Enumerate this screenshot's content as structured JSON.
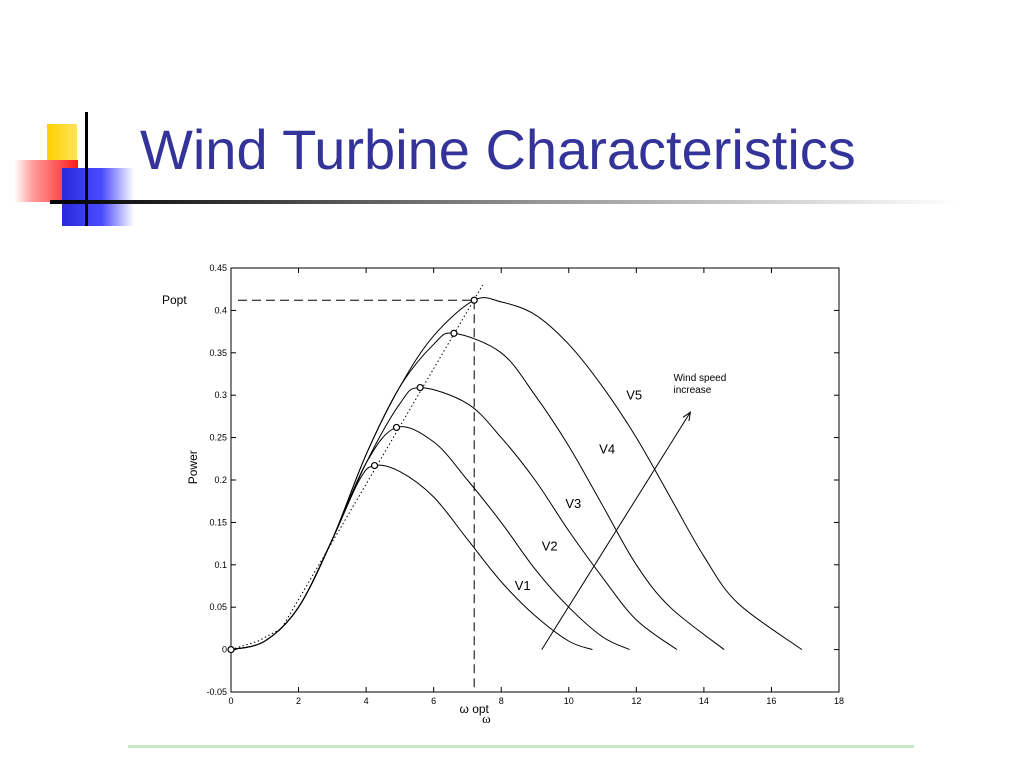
{
  "slide": {
    "title": "Wind Turbine Characteristics",
    "colors": {
      "title": "#333399",
      "yellow": "#ffd000",
      "red": "#ff1a1a",
      "blue": "#3333dd"
    }
  },
  "chart_data": {
    "type": "line",
    "title": "",
    "xlabel": "ω",
    "ylabel": "Power",
    "xlim": [
      0,
      18
    ],
    "ylim": [
      -0.05,
      0.45
    ],
    "x_ticks": [
      0,
      2,
      4,
      6,
      8,
      10,
      12,
      14,
      16,
      18
    ],
    "y_ticks": [
      -0.05,
      0,
      0.05,
      0.1,
      0.15,
      0.2,
      0.25,
      0.3,
      0.35,
      0.4,
      0.45
    ],
    "grid": false,
    "line_color": "#000000",
    "series": [
      {
        "name": "V1",
        "x": [
          0,
          1,
          2,
          3,
          3.8,
          4.25,
          5,
          6,
          7,
          8,
          9,
          10,
          10.7
        ],
        "y": [
          0,
          0.01,
          0.05,
          0.13,
          0.2,
          0.217,
          0.21,
          0.18,
          0.13,
          0.08,
          0.04,
          0.01,
          0
        ]
      },
      {
        "name": "V2",
        "x": [
          0,
          1,
          2,
          3,
          4,
          4.9,
          6,
          7,
          8,
          9,
          10,
          11,
          11.8
        ],
        "y": [
          0,
          0.01,
          0.05,
          0.13,
          0.22,
          0.262,
          0.245,
          0.2,
          0.15,
          0.095,
          0.05,
          0.015,
          0
        ]
      },
      {
        "name": "V3",
        "x": [
          0,
          1,
          2,
          3,
          4,
          5,
          5.6,
          7,
          8,
          9,
          10,
          11,
          12,
          13.2
        ],
        "y": [
          0,
          0.01,
          0.05,
          0.13,
          0.22,
          0.29,
          0.309,
          0.29,
          0.25,
          0.2,
          0.14,
          0.085,
          0.035,
          0
        ]
      },
      {
        "name": "V4",
        "x": [
          0,
          1,
          2,
          3,
          4,
          5,
          6,
          6.6,
          8,
          9,
          10,
          11,
          12,
          13,
          14.6
        ],
        "y": [
          0,
          0.01,
          0.05,
          0.13,
          0.23,
          0.31,
          0.36,
          0.373,
          0.35,
          0.3,
          0.24,
          0.17,
          0.1,
          0.05,
          0
        ]
      },
      {
        "name": "V5",
        "x": [
          0,
          1,
          2,
          3,
          4,
          5,
          6,
          7.2,
          8,
          9,
          10,
          11,
          12,
          13,
          14,
          15,
          16.9
        ],
        "y": [
          0,
          0.01,
          0.05,
          0.13,
          0.23,
          0.31,
          0.37,
          0.412,
          0.41,
          0.395,
          0.36,
          0.31,
          0.25,
          0.18,
          0.11,
          0.055,
          0
        ]
      }
    ],
    "optimum_points": {
      "x": [
        0,
        4.25,
        4.9,
        5.6,
        6.6,
        7.2
      ],
      "y": [
        0,
        0.217,
        0.262,
        0.309,
        0.373,
        0.412
      ]
    },
    "optimal_line": {
      "x": [
        0,
        0.8,
        1.5,
        7.45
      ],
      "y": [
        0,
        0.01,
        0.025,
        0.43
      ]
    },
    "annotations": {
      "popt_label": "Popt",
      "popt_value": 0.412,
      "wopt_label": "ω opt",
      "wopt_value": 7.2,
      "arrow_text_line1": "Wind speed",
      "arrow_text_line2": "increase",
      "arrow": {
        "from": [
          9.2,
          0.0
        ],
        "to": [
          13.6,
          0.28
        ]
      },
      "text_anchor": [
        13.1,
        0.305
      ]
    },
    "series_label_positions": [
      {
        "name": "V1",
        "x": 8.4,
        "y": 0.07
      },
      {
        "name": "V2",
        "x": 9.2,
        "y": 0.117
      },
      {
        "name": "V3",
        "x": 9.9,
        "y": 0.167
      },
      {
        "name": "V4",
        "x": 10.9,
        "y": 0.231
      },
      {
        "name": "V5",
        "x": 11.7,
        "y": 0.295
      }
    ]
  }
}
